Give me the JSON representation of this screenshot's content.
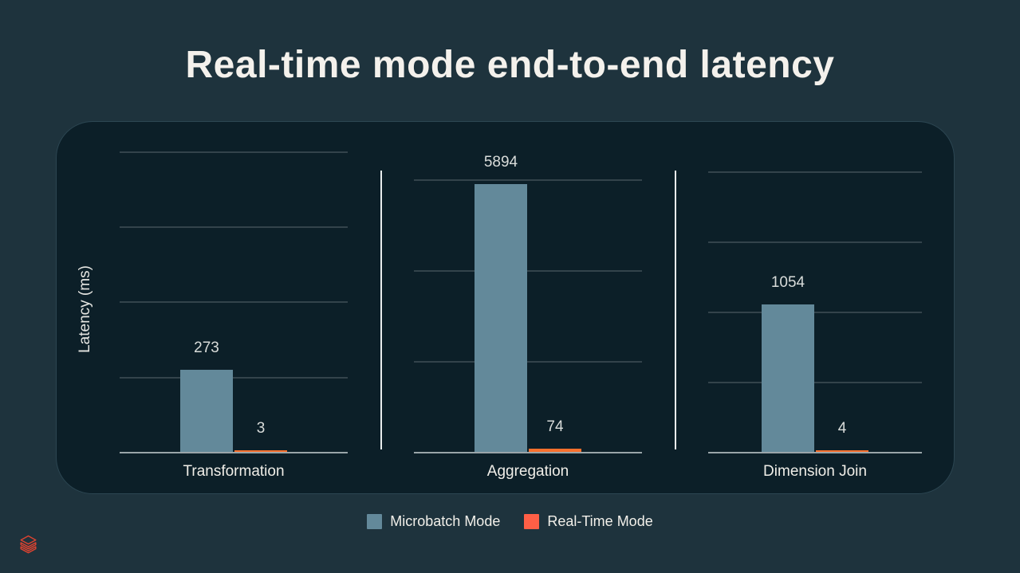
{
  "title": "Real-time mode end-to-end latency",
  "y_axis_label": "Latency (ms)",
  "chart_data": {
    "type": "bar",
    "title": "Real-time mode end-to-end latency",
    "ylabel": "Latency (ms)",
    "grid": true,
    "legend_position": "bottom",
    "categories": [
      "Transformation",
      "Aggregation",
      "Dimension Join"
    ],
    "series": [
      {
        "name": "Microbatch Mode",
        "color": "#63899A",
        "values": [
          273,
          5894,
          1054
        ]
      },
      {
        "name": "Real-Time Mode",
        "color": "#F8702D",
        "values": [
          3,
          74,
          4
        ]
      }
    ],
    "panels": [
      {
        "category": "Transformation",
        "values": [
          273,
          3
        ],
        "ylim": [
          0,
          1100
        ],
        "gridlines": [
          250,
          500,
          750,
          1000
        ]
      },
      {
        "category": "Aggregation",
        "values": [
          5894,
          74
        ],
        "ylim": [
          0,
          7270
        ],
        "gridlines": [
          2000,
          4000,
          6000
        ]
      },
      {
        "category": "Dimension Join",
        "values": [
          1054,
          4
        ],
        "ylim": [
          0,
          2360
        ],
        "gridlines": [
          500,
          1000,
          1500,
          2000
        ]
      }
    ]
  },
  "legend": {
    "items": [
      {
        "label": "Microbatch Mode",
        "color": "#63899A"
      },
      {
        "label": "Real-Time Mode",
        "color": "#FF5F46"
      }
    ]
  },
  "icons": {
    "bottom_left": "databricks-stacked-layers-icon"
  },
  "colors": {
    "page_bg": "#1E333D",
    "card_bg": "#0C1F28",
    "card_border": "#2C4652",
    "title_text": "#F4F1EC",
    "gridline": "#33434B",
    "axis_line": "#9AA5A9",
    "panel_separator": "#E9EDED",
    "value_label_text": "#D9DCDA",
    "category_text": "#F0EEE8",
    "legend_text": "#F2F0EA",
    "microbatch_bar": "#63899A",
    "realtime_bar": "#F8702D",
    "realtime_legend_swatch": "#FF5F46",
    "logo_red": "#DD4330"
  }
}
